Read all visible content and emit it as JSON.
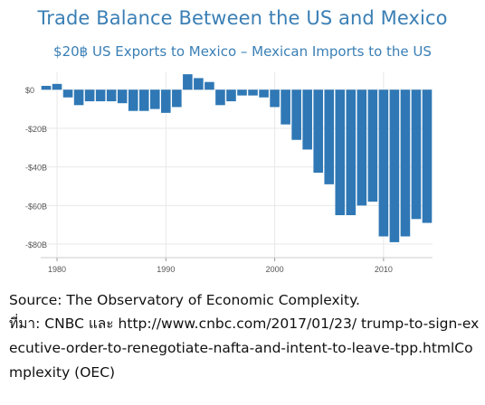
{
  "chart_data": {
    "type": "bar",
    "title": "Trade Balance Between the US and Mexico",
    "subtitle": "$20฿ US Exports to Mexico – Mexican Imports to the  US",
    "xlabel": "",
    "ylabel": "",
    "x": [
      1979,
      1980,
      1981,
      1982,
      1983,
      1984,
      1985,
      1986,
      1987,
      1988,
      1989,
      1990,
      1991,
      1992,
      1993,
      1994,
      1995,
      1996,
      1997,
      1998,
      1999,
      2000,
      2001,
      2002,
      2003,
      2004,
      2005,
      2006,
      2007,
      2008,
      2009,
      2010,
      2011,
      2012,
      2013,
      2014
    ],
    "values": [
      2,
      3,
      -4,
      -8,
      -6,
      -6,
      -6,
      -7,
      -11,
      -11,
      -10,
      -12,
      -9,
      8,
      6,
      4,
      -8,
      -6,
      -3,
      -3,
      -4,
      -9,
      -18,
      -26,
      -31,
      -43,
      -49,
      -65,
      -65,
      -60,
      -58,
      -76,
      -79,
      -76,
      -67,
      -69
    ],
    "x_ticks": [
      {
        "value": 1980,
        "label": "1980"
      },
      {
        "value": 1990,
        "label": "1990"
      },
      {
        "value": 2000,
        "label": "2000"
      },
      {
        "value": 2010,
        "label": "2010"
      }
    ],
    "y_ticks": [
      {
        "value": 0,
        "label": "$0"
      },
      {
        "value": -20,
        "label": "-$20B"
      },
      {
        "value": -40,
        "label": "-$40B"
      },
      {
        "value": -60,
        "label": "-$60B"
      },
      {
        "value": -80,
        "label": "-$80B"
      }
    ],
    "ylim": [
      -87,
      9
    ],
    "xlim": [
      1978.5,
      2014.5
    ],
    "grid": true,
    "legend": "none",
    "bar_color": "#2f78b5",
    "grid_color": "#e8e8e8",
    "title_color": "#3a7fb5"
  },
  "footer": {
    "source": "Source: The Observatory of Economic Complexity.",
    "reference": "ที่มา: CNBC และ http://www.cnbc.com/2017/01/23/ trump-to-sign-executive-order-to-renegotiate-nafta-and-intent-to-leave-tpp.htmlComplexity (OEC)"
  }
}
